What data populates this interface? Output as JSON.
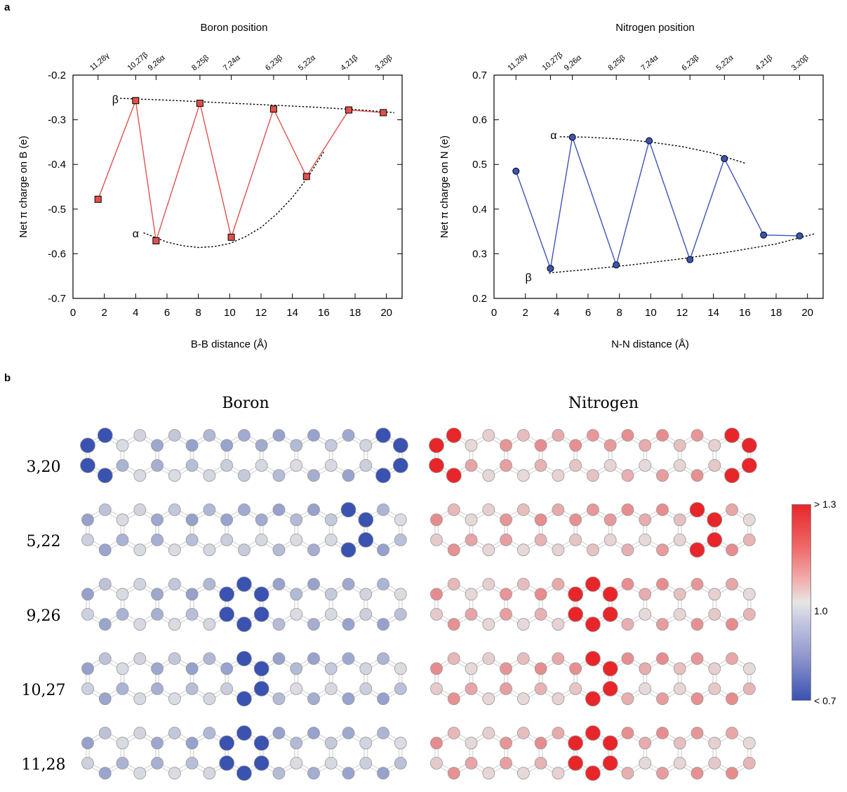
{
  "panel_a_label": "a",
  "panel_b_label": "b",
  "chart_data": [
    {
      "type": "line",
      "panel": "a-left",
      "toplabel": "Boron position",
      "xlabel": "B-B distance (Å)",
      "ylabel": "Net π charge on B (e)",
      "xlim": [
        0,
        21
      ],
      "ylim": [
        -0.7,
        -0.2
      ],
      "xticks": [
        0,
        2,
        4,
        6,
        8,
        10,
        12,
        14,
        16,
        18,
        20
      ],
      "yticks": [
        -0.7,
        -0.6,
        -0.5,
        -0.4,
        -0.3,
        -0.2
      ],
      "ytick_labels": [
        "-0.7",
        "-0.6",
        "-0.5",
        "-0.4",
        "-0.3",
        "-0.2"
      ],
      "top_ticks": [
        {
          "x": 1.6,
          "label": "11,28γ"
        },
        {
          "x": 4.0,
          "label": "10,27β"
        },
        {
          "x": 5.3,
          "label": "9,26α"
        },
        {
          "x": 8.1,
          "label": "8,25β"
        },
        {
          "x": 10.1,
          "label": "7,24α"
        },
        {
          "x": 12.8,
          "label": "6,23β"
        },
        {
          "x": 14.9,
          "label": "5,22α"
        },
        {
          "x": 17.6,
          "label": "4,21β"
        },
        {
          "x": 19.8,
          "label": "3,20β"
        }
      ],
      "series": [
        {
          "color": "#e0514c",
          "marker": "square",
          "x": [
            1.6,
            4.0,
            5.3,
            8.1,
            10.1,
            12.8,
            14.9,
            17.6,
            19.8
          ],
          "y": [
            -0.478,
            -0.257,
            -0.571,
            -0.263,
            -0.563,
            -0.276,
            -0.427,
            -0.278,
            -0.284
          ]
        }
      ],
      "annotations": [
        {
          "text": "β",
          "x": 2.7,
          "y": -0.255
        },
        {
          "text": "α",
          "x": 4.0,
          "y": -0.555
        }
      ],
      "trend_beta": {
        "x": [
          3.0,
          6,
          9,
          12,
          15,
          18,
          20.5
        ],
        "y": [
          -0.252,
          -0.256,
          -0.261,
          -0.266,
          -0.271,
          -0.277,
          -0.284
        ]
      },
      "trend_alpha": {
        "x": [
          4.5,
          6,
          7,
          8,
          9,
          10,
          11,
          12,
          13,
          14,
          15,
          16
        ],
        "y": [
          -0.553,
          -0.574,
          -0.582,
          -0.586,
          -0.584,
          -0.577,
          -0.562,
          -0.541,
          -0.511,
          -0.474,
          -0.428,
          -0.372
        ]
      }
    },
    {
      "type": "line",
      "panel": "a-right",
      "toplabel": "Nitrogen position",
      "xlabel": "N-N distance (Å)",
      "ylabel": "Net π charge on N (e)",
      "xlim": [
        0,
        21
      ],
      "ylim": [
        0.2,
        0.7
      ],
      "xticks": [
        0,
        2,
        4,
        6,
        8,
        10,
        12,
        14,
        16,
        18,
        20
      ],
      "yticks": [
        0.2,
        0.3,
        0.4,
        0.5,
        0.6,
        0.7
      ],
      "ytick_labels": [
        "0.2",
        "0.3",
        "0.4",
        "0.5",
        "0.6",
        "0.7"
      ],
      "top_ticks": [
        {
          "x": 1.4,
          "label": "11,28γ"
        },
        {
          "x": 3.6,
          "label": "10,27β"
        },
        {
          "x": 5.0,
          "label": "9,26α"
        },
        {
          "x": 7.8,
          "label": "8,25β"
        },
        {
          "x": 9.9,
          "label": "7,24α"
        },
        {
          "x": 12.5,
          "label": "6,23β"
        },
        {
          "x": 14.7,
          "label": "5,22α"
        },
        {
          "x": 17.2,
          "label": "4,21β"
        },
        {
          "x": 19.5,
          "label": "3,20β"
        }
      ],
      "series": [
        {
          "color": "#3b55b5",
          "marker": "circle",
          "x": [
            1.4,
            3.6,
            5.0,
            7.8,
            9.9,
            12.5,
            14.7,
            17.2,
            19.5
          ],
          "y": [
            0.485,
            0.267,
            0.561,
            0.275,
            0.553,
            0.287,
            0.513,
            0.342,
            0.34
          ]
        }
      ],
      "annotations": [
        {
          "text": "α",
          "x": 3.8,
          "y": 0.565
        },
        {
          "text": "β",
          "x": 2.2,
          "y": 0.246
        }
      ],
      "trend_alpha": {
        "x": [
          4.2,
          6,
          8,
          10,
          12,
          14,
          16
        ],
        "y": [
          0.562,
          0.561,
          0.557,
          0.55,
          0.54,
          0.525,
          0.503
        ]
      },
      "trend_beta": {
        "x": [
          3.5,
          6,
          9,
          12,
          15,
          18,
          20.5
        ],
        "y": [
          0.257,
          0.265,
          0.276,
          0.289,
          0.304,
          0.322,
          0.345
        ]
      }
    }
  ],
  "molecules": {
    "col_titles": [
      "Boron",
      "Nitrogen"
    ],
    "row_labels": [
      "3,20",
      "5,22",
      "9,26",
      "10,27",
      "11,28"
    ],
    "colorbar": {
      "top_label": "> 1.3",
      "mid_label": "1.0",
      "bottom_label": "< 0.7",
      "high_color": "#e8262a",
      "mid_color": "#e6e6e6",
      "low_color": "#3a52b0"
    }
  }
}
